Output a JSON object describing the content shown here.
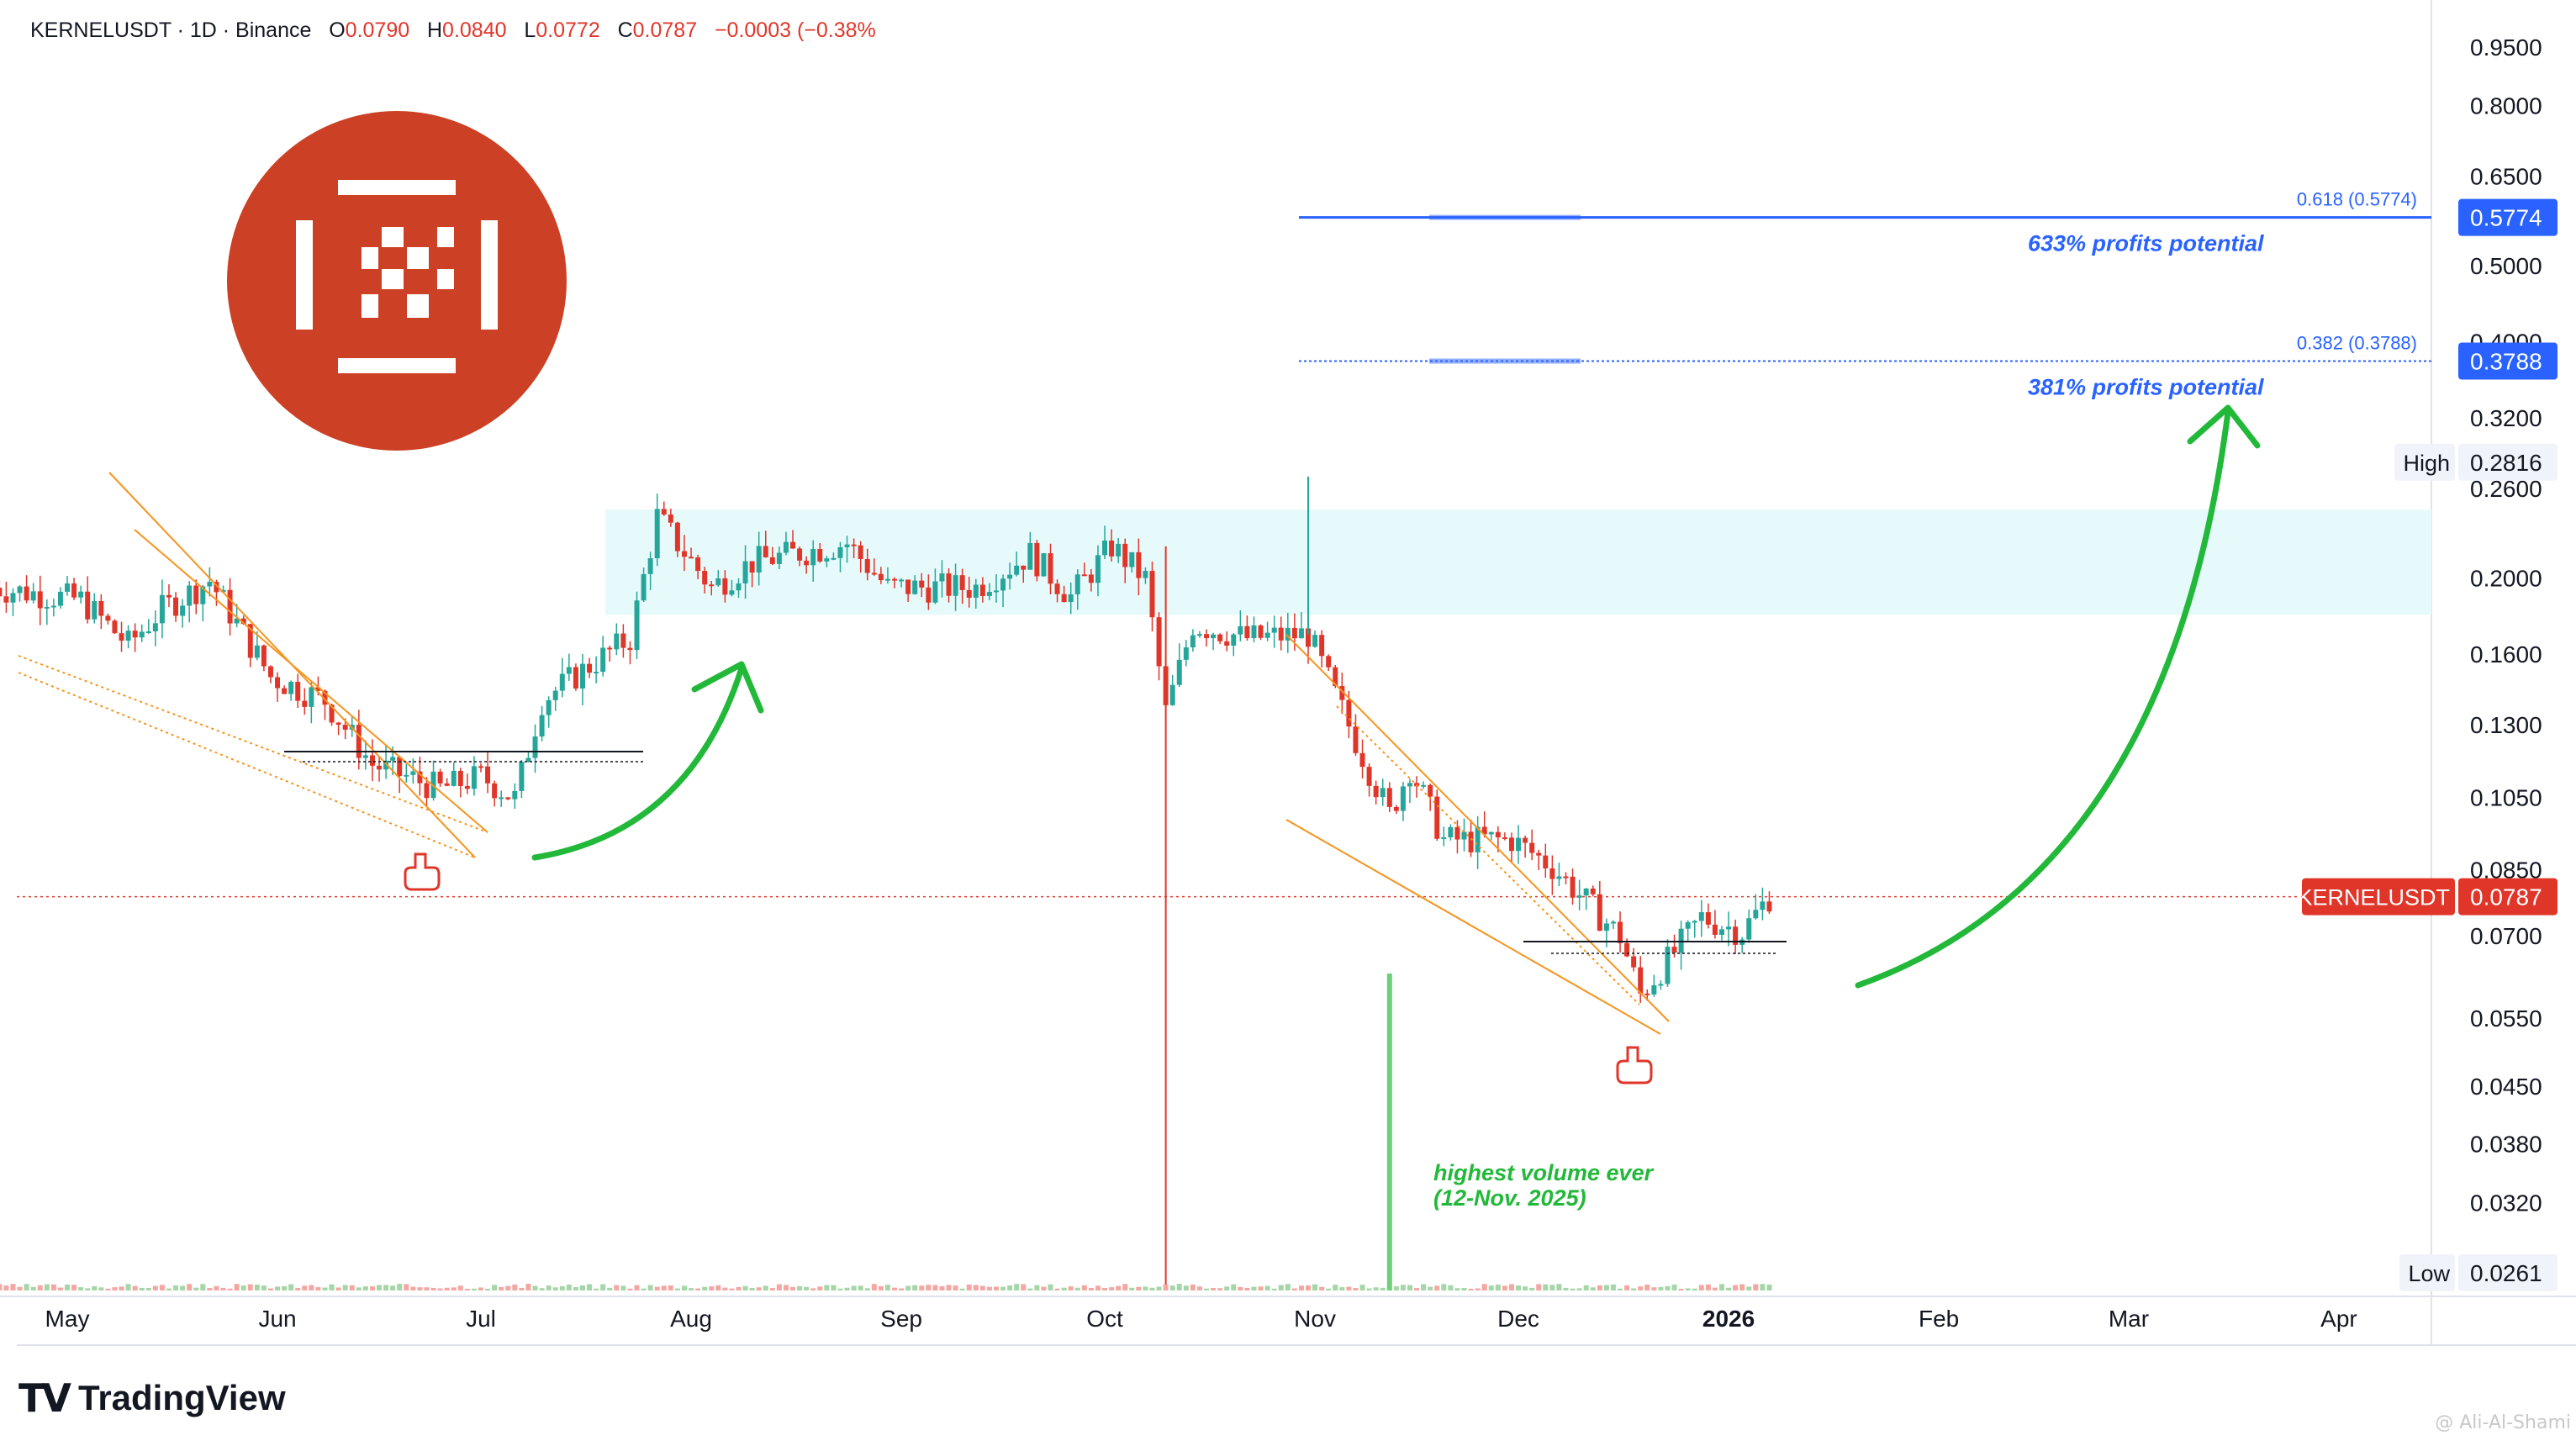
{
  "header": {
    "symbol_line": "KERNELUSDT · 1D · Binance",
    "open_label": "O",
    "open": "0.0790",
    "high_label": "H",
    "high": "0.0840",
    "low_label": "L",
    "low": "0.0772",
    "close_label": "C",
    "close": "0.0787",
    "change": "−0.0003 (−0.38%"
  },
  "brand": {
    "logo_glyph": "TV",
    "name": "TradingView"
  },
  "author": "@ Ali-Al-Shami",
  "colors": {
    "up": "#26a69a",
    "down": "#e0362a",
    "green_arrow": "#22b83a",
    "orange": "#f7941d",
    "blue": "#2962ff",
    "zone": "#e6fafc",
    "logo_red": "#cc4125"
  },
  "icons": [
    "kernel-logo-icon",
    "pointing-hand-icon",
    "curved-arrow-icon"
  ],
  "chart_data": {
    "type": "candlestick",
    "symbol": "KERNELUSDT",
    "interval": "1D",
    "exchange": "Binance",
    "y_scale": "log",
    "ylim": [
      0.0261,
      1.02
    ],
    "x_ticks": [
      "May",
      "Jun",
      "Jul",
      "Aug",
      "Sep",
      "Oct",
      "Nov",
      "Dec",
      "2026",
      "Feb",
      "Mar",
      "Apr"
    ],
    "y_ticks": [
      "0.9500",
      "0.8000",
      "0.6500",
      "0.5000",
      "0.4000",
      "0.3200",
      "0.2600",
      "0.2000",
      "0.1600",
      "0.1300",
      "0.1050",
      "0.0850",
      "0.0700",
      "0.0550",
      "0.0450",
      "0.0380",
      "0.0320"
    ],
    "price_labels": [
      {
        "name": "0.618",
        "value": 0.5774,
        "text": "0.5774"
      },
      {
        "name": "0.382",
        "value": 0.3788,
        "text": "0.3788"
      },
      {
        "name": "High",
        "value": 0.2816,
        "text": "0.2816"
      },
      {
        "name": "KERNELUSDT",
        "value": 0.0787,
        "text": "0.0787"
      },
      {
        "name": "Low",
        "value": 0.0261,
        "text": "0.0261"
      }
    ],
    "fib_levels": [
      {
        "label": "0.618 (0.5774)",
        "value": 0.5774,
        "note": "633% profits potential"
      },
      {
        "label": "0.382 (0.3788)",
        "value": 0.3788,
        "note": "381% profits potential"
      }
    ],
    "resistance_zone": {
      "from": 0.18,
      "to": 0.245
    },
    "current_price": 0.0787,
    "annotations": [
      {
        "text": "highest volume ever",
        "line2": "(12-Nov. 2025)"
      }
    ],
    "keypoints": [
      {
        "date": "2025-04-20",
        "close": 0.195
      },
      {
        "date": "2025-05-03",
        "close": 0.188
      },
      {
        "date": "2025-05-10",
        "close": 0.165
      },
      {
        "date": "2025-05-15",
        "close": 0.183
      },
      {
        "date": "2025-05-22",
        "close": 0.199
      },
      {
        "date": "2025-05-31",
        "close": 0.15
      },
      {
        "date": "2025-06-08",
        "close": 0.14
      },
      {
        "date": "2025-06-15",
        "close": 0.116
      },
      {
        "date": "2025-06-25",
        "close": 0.108
      },
      {
        "date": "2025-07-01",
        "close": 0.112
      },
      {
        "date": "2025-07-06",
        "close": 0.105
      },
      {
        "date": "2025-07-10",
        "close": 0.14
      },
      {
        "date": "2025-07-17",
        "close": 0.155
      },
      {
        "date": "2025-07-23",
        "close": 0.168
      },
      {
        "date": "2025-07-27",
        "close": 0.24
      },
      {
        "date": "2025-08-04",
        "close": 0.195
      },
      {
        "date": "2025-08-10",
        "close": 0.21
      },
      {
        "date": "2025-08-24",
        "close": 0.222
      },
      {
        "date": "2025-08-30",
        "close": 0.195
      },
      {
        "date": "2025-09-12",
        "close": 0.195
      },
      {
        "date": "2025-09-20",
        "close": 0.215
      },
      {
        "date": "2025-09-26",
        "close": 0.19
      },
      {
        "date": "2025-10-02",
        "close": 0.22
      },
      {
        "date": "2025-10-07",
        "close": 0.2
      },
      {
        "date": "2025-10-10",
        "close": 0.135
      },
      {
        "date": "2025-10-14",
        "close": 0.175
      },
      {
        "date": "2025-10-22",
        "close": 0.168
      },
      {
        "date": "2025-10-31",
        "close": 0.17
      },
      {
        "date": "2025-11-06",
        "close": 0.13
      },
      {
        "date": "2025-11-12",
        "close": 0.1
      },
      {
        "date": "2025-11-15",
        "close": 0.115
      },
      {
        "date": "2025-11-20",
        "close": 0.093
      },
      {
        "date": "2025-11-30",
        "close": 0.093
      },
      {
        "date": "2025-12-06",
        "close": 0.086
      },
      {
        "date": "2025-12-16",
        "close": 0.07
      },
      {
        "date": "2025-12-19",
        "close": 0.059
      },
      {
        "date": "2025-12-28",
        "close": 0.074
      },
      {
        "date": "2026-01-03",
        "close": 0.071
      },
      {
        "date": "2026-01-07",
        "close": 0.0787
      }
    ]
  }
}
